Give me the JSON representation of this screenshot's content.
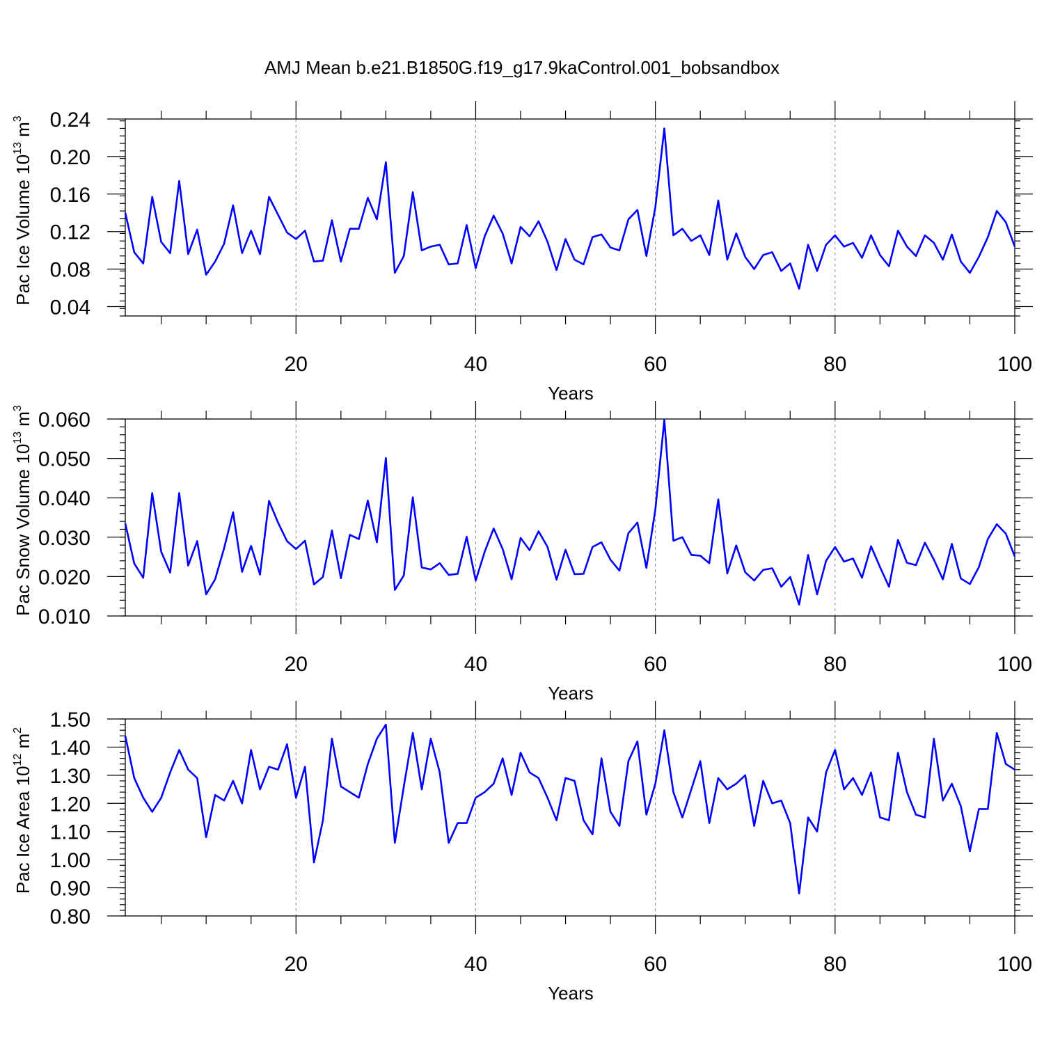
{
  "figure": {
    "title": "AMJ Mean b.e21.B1850G.f19_g17.9kaControl.001_bobsandbox",
    "series_color": "#0000ff"
  },
  "chart_data": [
    {
      "type": "line",
      "xlabel": "Years",
      "ylabel": {
        "main": "Pac Ice Volume 10",
        "sup": "13",
        "unit": " m",
        "unit_sup": "3"
      },
      "xlim": [
        1,
        100
      ],
      "ylim": [
        0.03,
        0.24
      ],
      "xticks": [
        20,
        40,
        60,
        80,
        100
      ],
      "xtick_labels": [
        "20",
        "40",
        "60",
        "80",
        "100"
      ],
      "yticks": [
        0.04,
        0.08,
        0.12,
        0.16,
        0.2,
        0.24
      ],
      "ytick_labels": [
        "0.04",
        "0.08",
        "0.12",
        "0.16",
        "0.20",
        "0.24"
      ],
      "grid": "vertical dashed at major x ticks",
      "x": [
        1,
        2,
        3,
        4,
        5,
        6,
        7,
        8,
        9,
        10,
        11,
        12,
        13,
        14,
        15,
        16,
        17,
        18,
        19,
        20,
        21,
        22,
        23,
        24,
        25,
        26,
        27,
        28,
        29,
        30,
        31,
        32,
        33,
        34,
        35,
        36,
        37,
        38,
        39,
        40,
        41,
        42,
        43,
        44,
        45,
        46,
        47,
        48,
        49,
        50,
        51,
        52,
        53,
        54,
        55,
        56,
        57,
        58,
        59,
        60,
        61,
        62,
        63,
        64,
        65,
        66,
        67,
        68,
        69,
        70,
        71,
        72,
        73,
        74,
        75,
        76,
        77,
        78,
        79,
        80,
        81,
        82,
        83,
        84,
        85,
        86,
        87,
        88,
        89,
        90,
        91,
        92,
        93,
        94,
        95,
        96,
        97,
        98,
        99,
        100
      ],
      "values": [
        0.14,
        0.098,
        0.086,
        0.157,
        0.109,
        0.097,
        0.174,
        0.096,
        0.122,
        0.074,
        0.088,
        0.107,
        0.148,
        0.097,
        0.121,
        0.096,
        0.157,
        0.138,
        0.119,
        0.112,
        0.121,
        0.088,
        0.089,
        0.132,
        0.088,
        0.123,
        0.123,
        0.156,
        0.133,
        0.194,
        0.076,
        0.094,
        0.162,
        0.1,
        0.104,
        0.106,
        0.085,
        0.086,
        0.127,
        0.081,
        0.115,
        0.137,
        0.118,
        0.086,
        0.125,
        0.115,
        0.131,
        0.109,
        0.079,
        0.112,
        0.09,
        0.085,
        0.114,
        0.117,
        0.103,
        0.1,
        0.133,
        0.143,
        0.094,
        0.146,
        0.23,
        0.116,
        0.123,
        0.11,
        0.116,
        0.095,
        0.153,
        0.09,
        0.118,
        0.093,
        0.08,
        0.095,
        0.098,
        0.078,
        0.086,
        0.059,
        0.106,
        0.078,
        0.106,
        0.116,
        0.104,
        0.108,
        0.092,
        0.116,
        0.095,
        0.083,
        0.121,
        0.104,
        0.094,
        0.116,
        0.108,
        0.09,
        0.117,
        0.088,
        0.076,
        0.093,
        0.114,
        0.142,
        0.13,
        0.104
      ]
    },
    {
      "type": "line",
      "xlabel": "Years",
      "ylabel": {
        "main": "Pac Snow Volume 10",
        "sup": "13",
        "unit": " m",
        "unit_sup": "3"
      },
      "xlim": [
        1,
        100
      ],
      "ylim": [
        0.01,
        0.06
      ],
      "xticks": [
        20,
        40,
        60,
        80,
        100
      ],
      "xtick_labels": [
        "20",
        "40",
        "60",
        "80",
        "100"
      ],
      "yticks": [
        0.01,
        0.02,
        0.03,
        0.04,
        0.05,
        0.06
      ],
      "ytick_labels": [
        "0.010",
        "0.020",
        "0.030",
        "0.040",
        "0.050",
        "0.060"
      ],
      "grid": "vertical dashed at major x ticks",
      "x": [
        1,
        2,
        3,
        4,
        5,
        6,
        7,
        8,
        9,
        10,
        11,
        12,
        13,
        14,
        15,
        16,
        17,
        18,
        19,
        20,
        21,
        22,
        23,
        24,
        25,
        26,
        27,
        28,
        29,
        30,
        31,
        32,
        33,
        34,
        35,
        36,
        37,
        38,
        39,
        40,
        41,
        42,
        43,
        44,
        45,
        46,
        47,
        48,
        49,
        50,
        51,
        52,
        53,
        54,
        55,
        56,
        57,
        58,
        59,
        60,
        61,
        62,
        63,
        64,
        65,
        66,
        67,
        68,
        69,
        70,
        71,
        72,
        73,
        74,
        75,
        76,
        77,
        78,
        79,
        80,
        81,
        82,
        83,
        84,
        85,
        86,
        87,
        88,
        89,
        90,
        91,
        92,
        93,
        94,
        95,
        96,
        97,
        98,
        99,
        100
      ],
      "values": [
        0.0335,
        0.0233,
        0.0197,
        0.0412,
        0.0263,
        0.021,
        0.0412,
        0.0228,
        0.029,
        0.0155,
        0.0193,
        0.0272,
        0.0363,
        0.0212,
        0.0278,
        0.0205,
        0.0392,
        0.0337,
        0.029,
        0.027,
        0.0291,
        0.018,
        0.0199,
        0.0317,
        0.0196,
        0.0306,
        0.0295,
        0.0393,
        0.0287,
        0.0501,
        0.0166,
        0.0203,
        0.0401,
        0.0223,
        0.0218,
        0.0234,
        0.0204,
        0.0207,
        0.0301,
        0.019,
        0.0263,
        0.0322,
        0.027,
        0.0193,
        0.0298,
        0.0267,
        0.0315,
        0.0275,
        0.0192,
        0.0268,
        0.0206,
        0.0207,
        0.0275,
        0.0287,
        0.0243,
        0.0215,
        0.031,
        0.0337,
        0.0222,
        0.037,
        0.0598,
        0.0291,
        0.03,
        0.0255,
        0.0253,
        0.0234,
        0.0396,
        0.0208,
        0.0279,
        0.0211,
        0.019,
        0.0217,
        0.0221,
        0.0174,
        0.0199,
        0.0129,
        0.0255,
        0.0155,
        0.024,
        0.0275,
        0.0238,
        0.0246,
        0.0197,
        0.0277,
        0.0224,
        0.0174,
        0.0293,
        0.0235,
        0.0229,
        0.0286,
        0.0243,
        0.0193,
        0.0283,
        0.0195,
        0.0181,
        0.0224,
        0.0295,
        0.0333,
        0.0309,
        0.0251
      ]
    },
    {
      "type": "line",
      "xlabel": "Years",
      "ylabel": {
        "main": "Pac Ice Area 10",
        "sup": "12",
        "unit": " m",
        "unit_sup": "2"
      },
      "xlim": [
        1,
        100
      ],
      "ylim": [
        0.8,
        1.5
      ],
      "xticks": [
        20,
        40,
        60,
        80,
        100
      ],
      "xtick_labels": [
        "20",
        "40",
        "60",
        "80",
        "100"
      ],
      "yticks": [
        0.8,
        0.9,
        1.0,
        1.1,
        1.2,
        1.3,
        1.4,
        1.5
      ],
      "ytick_labels": [
        "0.80",
        "0.90",
        "1.00",
        "1.10",
        "1.20",
        "1.30",
        "1.40",
        "1.50"
      ],
      "grid": "vertical dashed at major x ticks",
      "x": [
        1,
        2,
        3,
        4,
        5,
        6,
        7,
        8,
        9,
        10,
        11,
        12,
        13,
        14,
        15,
        16,
        17,
        18,
        19,
        20,
        21,
        22,
        23,
        24,
        25,
        26,
        27,
        28,
        29,
        30,
        31,
        32,
        33,
        34,
        35,
        36,
        37,
        38,
        39,
        40,
        41,
        42,
        43,
        44,
        45,
        46,
        47,
        48,
        49,
        50,
        51,
        52,
        53,
        54,
        55,
        56,
        57,
        58,
        59,
        60,
        61,
        62,
        63,
        64,
        65,
        66,
        67,
        68,
        69,
        70,
        71,
        72,
        73,
        74,
        75,
        76,
        77,
        78,
        79,
        80,
        81,
        82,
        83,
        84,
        85,
        86,
        87,
        88,
        89,
        90,
        91,
        92,
        93,
        94,
        95,
        96,
        97,
        98,
        99,
        100
      ],
      "values": [
        1.44,
        1.29,
        1.22,
        1.17,
        1.22,
        1.31,
        1.39,
        1.32,
        1.29,
        1.08,
        1.23,
        1.21,
        1.28,
        1.2,
        1.39,
        1.25,
        1.33,
        1.32,
        1.41,
        1.22,
        1.33,
        0.99,
        1.14,
        1.43,
        1.26,
        1.24,
        1.22,
        1.34,
        1.43,
        1.48,
        1.06,
        1.26,
        1.45,
        1.25,
        1.43,
        1.31,
        1.06,
        1.13,
        1.13,
        1.22,
        1.24,
        1.27,
        1.36,
        1.23,
        1.38,
        1.31,
        1.29,
        1.22,
        1.14,
        1.29,
        1.28,
        1.14,
        1.09,
        1.36,
        1.17,
        1.12,
        1.35,
        1.42,
        1.16,
        1.27,
        1.46,
        1.24,
        1.15,
        1.25,
        1.35,
        1.13,
        1.29,
        1.25,
        1.27,
        1.3,
        1.12,
        1.28,
        1.2,
        1.21,
        1.13,
        0.88,
        1.15,
        1.1,
        1.31,
        1.39,
        1.25,
        1.29,
        1.23,
        1.31,
        1.15,
        1.14,
        1.38,
        1.24,
        1.16,
        1.15,
        1.43,
        1.21,
        1.27,
        1.19,
        1.03,
        1.18,
        1.18,
        1.45,
        1.34,
        1.32
      ]
    }
  ]
}
